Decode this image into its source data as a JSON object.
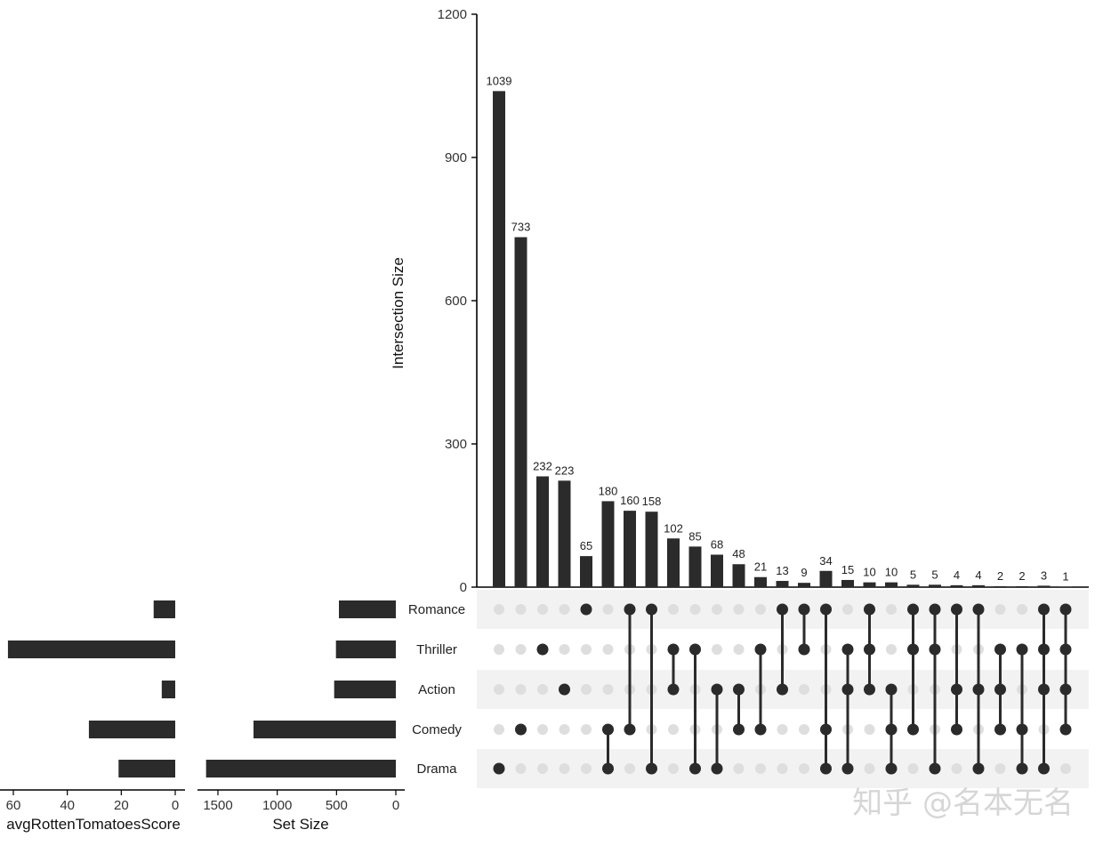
{
  "chart_data": {
    "type": "upset",
    "title": "",
    "intersection_axis": {
      "label": "Intersection Size",
      "ylim": [
        0,
        1200
      ],
      "ticks": [
        "0",
        "300",
        "600",
        "900",
        "1200"
      ]
    },
    "sets": [
      "Romance",
      "Thriller",
      "Action",
      "Comedy",
      "Drama"
    ],
    "set_size_axis": {
      "label": "Set Size",
      "xlim": [
        1650,
        0
      ],
      "ticks": [
        "1500",
        "1000",
        "500",
        "0"
      ]
    },
    "set_sizes": [
      {
        "set": "Romance",
        "value": 480
      },
      {
        "set": "Thriller",
        "value": 505
      },
      {
        "set": "Action",
        "value": 520
      },
      {
        "set": "Comedy",
        "value": 1200
      },
      {
        "set": "Drama",
        "value": 1600
      }
    ],
    "score_axis": {
      "label": "avgRottenTomatoesScore",
      "xlim": [
        68,
        0
      ],
      "ticks": [
        "60",
        "40",
        "20",
        "0"
      ]
    },
    "scores": [
      {
        "set": "Romance",
        "value": 8
      },
      {
        "set": "Thriller",
        "value": 62
      },
      {
        "set": "Action",
        "value": 5
      },
      {
        "set": "Comedy",
        "value": 32
      },
      {
        "set": "Drama",
        "value": 21
      }
    ],
    "intersections": [
      {
        "sets": [
          "Drama"
        ],
        "value": 1039,
        "label": "1039"
      },
      {
        "sets": [
          "Comedy"
        ],
        "value": 733,
        "label": "733"
      },
      {
        "sets": [
          "Thriller"
        ],
        "value": 232,
        "label": "232"
      },
      {
        "sets": [
          "Action"
        ],
        "value": 223,
        "label": "223"
      },
      {
        "sets": [
          "Romance"
        ],
        "value": 65,
        "label": "65"
      },
      {
        "sets": [
          "Comedy",
          "Drama"
        ],
        "value": 180,
        "label": "180"
      },
      {
        "sets": [
          "Romance",
          "Comedy"
        ],
        "value": 160,
        "label": "160"
      },
      {
        "sets": [
          "Romance",
          "Drama"
        ],
        "value": 158,
        "label": "158"
      },
      {
        "sets": [
          "Thriller",
          "Action"
        ],
        "value": 102,
        "label": "102"
      },
      {
        "sets": [
          "Thriller",
          "Drama"
        ],
        "value": 85,
        "label": "85"
      },
      {
        "sets": [
          "Action",
          "Drama"
        ],
        "value": 68,
        "label": "68"
      },
      {
        "sets": [
          "Action",
          "Comedy"
        ],
        "value": 48,
        "label": "48"
      },
      {
        "sets": [
          "Thriller",
          "Comedy"
        ],
        "value": 21,
        "label": "21"
      },
      {
        "sets": [
          "Romance",
          "Action"
        ],
        "value": 13,
        "label": "13"
      },
      {
        "sets": [
          "Romance",
          "Thriller"
        ],
        "value": 9,
        "label": "9"
      },
      {
        "sets": [
          "Romance",
          "Comedy",
          "Drama"
        ],
        "value": 34,
        "label": "34"
      },
      {
        "sets": [
          "Thriller",
          "Action",
          "Drama"
        ],
        "value": 15,
        "label": "15"
      },
      {
        "sets": [
          "Romance",
          "Thriller",
          "Action"
        ],
        "value": 10,
        "label": "10"
      },
      {
        "sets": [
          "Action",
          "Comedy",
          "Drama"
        ],
        "value": 10,
        "label": "10"
      },
      {
        "sets": [
          "Romance",
          "Thriller",
          "Comedy"
        ],
        "value": 5,
        "label": "5"
      },
      {
        "sets": [
          "Romance",
          "Thriller",
          "Drama"
        ],
        "value": 5,
        "label": "5"
      },
      {
        "sets": [
          "Romance",
          "Action",
          "Comedy"
        ],
        "value": 4,
        "label": "4"
      },
      {
        "sets": [
          "Romance",
          "Action",
          "Drama"
        ],
        "value": 4,
        "label": "4"
      },
      {
        "sets": [
          "Thriller",
          "Action",
          "Comedy"
        ],
        "value": 2,
        "label": "2"
      },
      {
        "sets": [
          "Thriller",
          "Comedy",
          "Drama"
        ],
        "value": 2,
        "label": "2"
      },
      {
        "sets": [
          "Romance",
          "Thriller",
          "Action",
          "Drama"
        ],
        "value": 3,
        "label": "3"
      },
      {
        "sets": [
          "Romance",
          "Thriller",
          "Action",
          "Comedy"
        ],
        "value": 1,
        "label": "1"
      }
    ],
    "colors": {
      "bar": "#2b2b2b",
      "dot_active": "#2b2b2b",
      "dot_inactive": "#dedede",
      "stripe": "#f2f2f2"
    }
  },
  "watermark": "知乎 @名本无名"
}
